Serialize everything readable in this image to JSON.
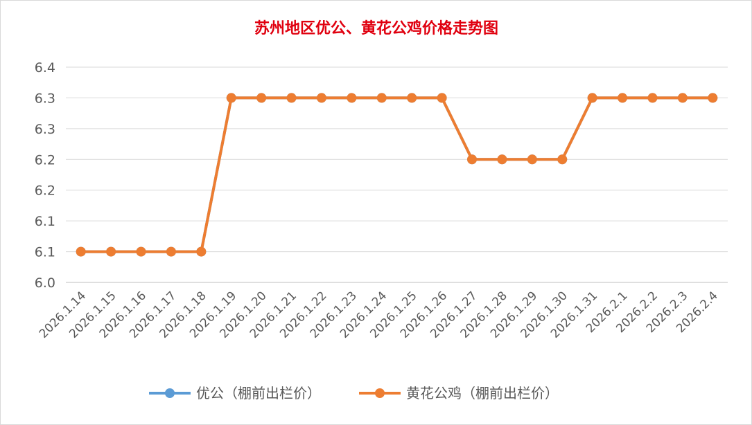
{
  "chart_data": {
    "type": "line",
    "title": "苏州地区优公、黄花公鸡价格走势图",
    "categories": [
      "2026.1.14",
      "2026.1.15",
      "2026.1.16",
      "2026.1.17",
      "2026.1.18",
      "2026.1.19",
      "2026.1.20",
      "2026.1.21",
      "2026.1.22",
      "2026.1.23",
      "2026.1.24",
      "2026.1.25",
      "2026.1.26",
      "2026.1.27",
      "2026.1.28",
      "2026.1.29",
      "2026.1.30",
      "2026.1.31",
      "2026.2.1",
      "2026.2.2",
      "2026.2.3",
      "2026.2.4"
    ],
    "y_tick_labels": [
      "6.4",
      "6.3",
      "6.3",
      "6.2",
      "6.2",
      "6.1",
      "6.1",
      "6.0"
    ],
    "ylim": [
      6.0,
      6.35
    ],
    "grid": true,
    "legend_position": "bottom",
    "series": [
      {
        "name": "优公（棚前出栏价）",
        "color": "#5b9bd5",
        "values": [
          6.05,
          6.05,
          6.05,
          6.05,
          6.05,
          6.3,
          6.3,
          6.3,
          6.3,
          6.3,
          6.3,
          6.3,
          6.3,
          6.2,
          6.2,
          6.2,
          6.2,
          6.3,
          6.3,
          6.3,
          6.3,
          6.3
        ]
      },
      {
        "name": "黄花公鸡（棚前出栏价）",
        "color": "#ed7d31",
        "values": [
          6.05,
          6.05,
          6.05,
          6.05,
          6.05,
          6.3,
          6.3,
          6.3,
          6.3,
          6.3,
          6.3,
          6.3,
          6.3,
          6.2,
          6.2,
          6.2,
          6.2,
          6.3,
          6.3,
          6.3,
          6.3,
          6.3
        ]
      }
    ]
  }
}
